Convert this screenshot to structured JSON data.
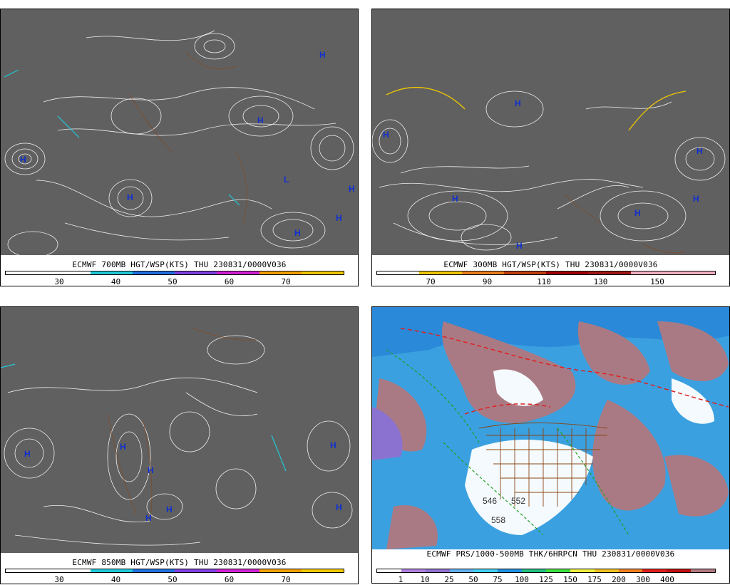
{
  "panels": {
    "p700": {
      "title": "ECMWF 700MB HGT/WSP(KTS) THU 230831/0000V036",
      "scale_colors": [
        "#ffffff",
        "#ffffff",
        "#20c8d8",
        "#2070e0",
        "#8040e0",
        "#d020d0",
        "#f0a000",
        "#f0c800"
      ],
      "ticks": [
        "30",
        "40",
        "50",
        "60",
        "70"
      ],
      "markers": [
        "H",
        "H",
        "H",
        "H",
        "H",
        "H",
        "H",
        "L"
      ]
    },
    "p300": {
      "title": "ECMWF 300MB HGT/WSP(KTS) THU 230831/0000V036",
      "scale_colors": [
        "#ffffff",
        "#f0c800",
        "#e88020",
        "#c04010",
        "#a00000",
        "#a01818",
        "#f0b0c0",
        "#f0b0c0"
      ],
      "ticks": [
        "70",
        "90",
        "110",
        "130",
        "150"
      ],
      "markers": [
        "H",
        "H",
        "H",
        "H",
        "H",
        "H",
        "H"
      ]
    },
    "p850": {
      "title": "ECMWF 850MB HGT/WSP(KTS) THU 230831/0000V036",
      "scale_colors": [
        "#ffffff",
        "#ffffff",
        "#20c8d8",
        "#2070e0",
        "#8040e0",
        "#d020d0",
        "#f0a000",
        "#f0c800"
      ],
      "ticks": [
        "30",
        "40",
        "50",
        "60",
        "70"
      ],
      "markers": [
        "H",
        "H",
        "H",
        "H",
        "H",
        "H",
        "H"
      ]
    },
    "pprcp": {
      "title": "ECMWF PRS/1000-500MB THK/6HRPCN THU 230831/0000V036",
      "scale_colors": [
        "#ffffff",
        "#b080e0",
        "#9070d0",
        "#60b0f0",
        "#40d0f0",
        "#2090e0",
        "#20c080",
        "#40e040",
        "#f0f040",
        "#f0c020",
        "#f08020",
        "#e02020",
        "#c01010",
        "#b07880"
      ],
      "ticks": [
        "1",
        "10",
        "25",
        "50",
        "75",
        "100",
        "125",
        "150",
        "175",
        "200",
        "300",
        "400"
      ],
      "thickness_labels": [
        "546",
        "552",
        "558"
      ]
    }
  }
}
